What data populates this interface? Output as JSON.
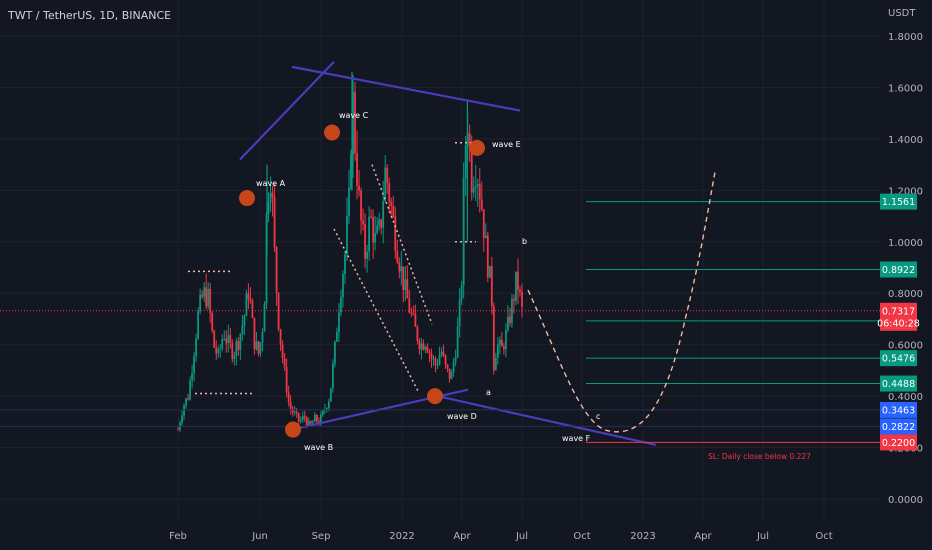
{
  "header": {
    "title": "TWT / TetherUS, 1D, BINANCE"
  },
  "chart_data": {
    "type": "candlestick",
    "title": "TWT / TetherUS, 1D, BINANCE",
    "currency": "USDT",
    "y_range": [
      0,
      1.8
    ],
    "y_ticks": [
      "1.8000",
      "1.6000",
      "1.4000",
      "1.2000",
      "1.0000",
      "0.8000",
      "0.6000",
      "0.4000",
      "0.2000",
      "0.0000"
    ],
    "x_ticks": [
      "Feb",
      "Jun",
      "Sep",
      "2022",
      "Apr",
      "Jul",
      "Oct",
      "2023",
      "Apr",
      "Jul",
      "Oct"
    ],
    "ohlc_path": [
      [
        0,
        0.27
      ],
      [
        0.5,
        0.36
      ],
      [
        1,
        0.4
      ],
      [
        1.5,
        0.55
      ],
      [
        2,
        0.72
      ],
      [
        2.5,
        0.8
      ],
      [
        3,
        0.78
      ],
      [
        3.5,
        0.6
      ],
      [
        4,
        0.55
      ],
      [
        4.5,
        0.65
      ],
      [
        5,
        0.6
      ],
      [
        5.5,
        0.57
      ],
      [
        6,
        0.62
      ],
      [
        6.5,
        0.7
      ],
      [
        7,
        0.82
      ],
      [
        7.5,
        0.62
      ],
      [
        8,
        0.56
      ],
      [
        8.5,
        0.72
      ],
      [
        8.8,
        1.17
      ],
      [
        9.2,
        1.28
      ],
      [
        9.6,
        0.9
      ],
      [
        10,
        0.66
      ],
      [
        10.5,
        0.5
      ],
      [
        11,
        0.36
      ],
      [
        11.5,
        0.33
      ],
      [
        12,
        0.3
      ],
      [
        12.5,
        0.32
      ],
      [
        13,
        0.28
      ],
      [
        13.5,
        0.31
      ],
      [
        14,
        0.3
      ],
      [
        14.5,
        0.35
      ],
      [
        15,
        0.4
      ],
      [
        15.5,
        0.58
      ],
      [
        16,
        0.8
      ],
      [
        16.5,
        0.95
      ],
      [
        17,
        1.2
      ],
      [
        17.2,
        1.62
      ],
      [
        17.5,
        1.38
      ],
      [
        18,
        1.1
      ],
      [
        18.5,
        0.95
      ],
      [
        19,
        1.1
      ],
      [
        19.5,
        1.0
      ],
      [
        20,
        1.05
      ],
      [
        20.5,
        1.28
      ],
      [
        21,
        1.15
      ],
      [
        21.5,
        1.02
      ],
      [
        22,
        0.9
      ],
      [
        22.5,
        0.8
      ],
      [
        23,
        0.72
      ],
      [
        23.5,
        0.65
      ],
      [
        24,
        0.6
      ],
      [
        24.5,
        0.62
      ],
      [
        25,
        0.55
      ],
      [
        25.5,
        0.52
      ],
      [
        26,
        0.58
      ],
      [
        26.5,
        0.5
      ],
      [
        27,
        0.47
      ],
      [
        27.5,
        0.6
      ],
      [
        28,
        0.8
      ],
      [
        28.3,
        1.3
      ],
      [
        28.6,
        1.5
      ],
      [
        29,
        1.25
      ],
      [
        29.5,
        1.3
      ],
      [
        30,
        1.15
      ],
      [
        30.5,
        0.95
      ],
      [
        31,
        0.8
      ],
      [
        31.2,
        0.52
      ],
      [
        31.5,
        0.6
      ],
      [
        32,
        0.58
      ],
      [
        32.5,
        0.65
      ],
      [
        33,
        0.75
      ],
      [
        33.5,
        0.86
      ],
      [
        34,
        0.73
      ]
    ],
    "levels": [
      {
        "value": 1.1561,
        "label": "1.1561",
        "color": "#089981"
      },
      {
        "value": 0.8922,
        "label": "0.8922",
        "color": "#089981"
      },
      {
        "value": 0.6926,
        "label": "0.6926",
        "color": "#089981"
      },
      {
        "value": 0.5476,
        "label": "0.5476",
        "color": "#089981"
      },
      {
        "value": 0.4488,
        "label": "0.4488",
        "color": "#089981"
      },
      {
        "value": 0.3463,
        "label": "0.3463",
        "color": "#2962ff"
      },
      {
        "value": 0.2822,
        "label": "0.2822",
        "color": "#2962ff"
      },
      {
        "value": 0.22,
        "label": "0.2200",
        "color": "#f23645"
      }
    ],
    "last_price": {
      "value": 0.7317,
      "label": "0.7317",
      "countdown": "06:40:28",
      "color": "#f23645"
    },
    "annotations": [
      {
        "text": "wave A"
      },
      {
        "text": "wave B"
      },
      {
        "text": "wave C"
      },
      {
        "text": "wave D"
      },
      {
        "text": "wave E"
      },
      {
        "text": "wave F"
      },
      {
        "text": "a"
      },
      {
        "text": "b"
      },
      {
        "text": "c"
      }
    ],
    "stop_loss_note": "SL: Daily close below 0.227",
    "colors": {
      "up": "#089981",
      "down": "#f23645",
      "trendline": "#4b3bbd",
      "marker": "#c6461a",
      "projection": "#f0b8a0"
    }
  }
}
